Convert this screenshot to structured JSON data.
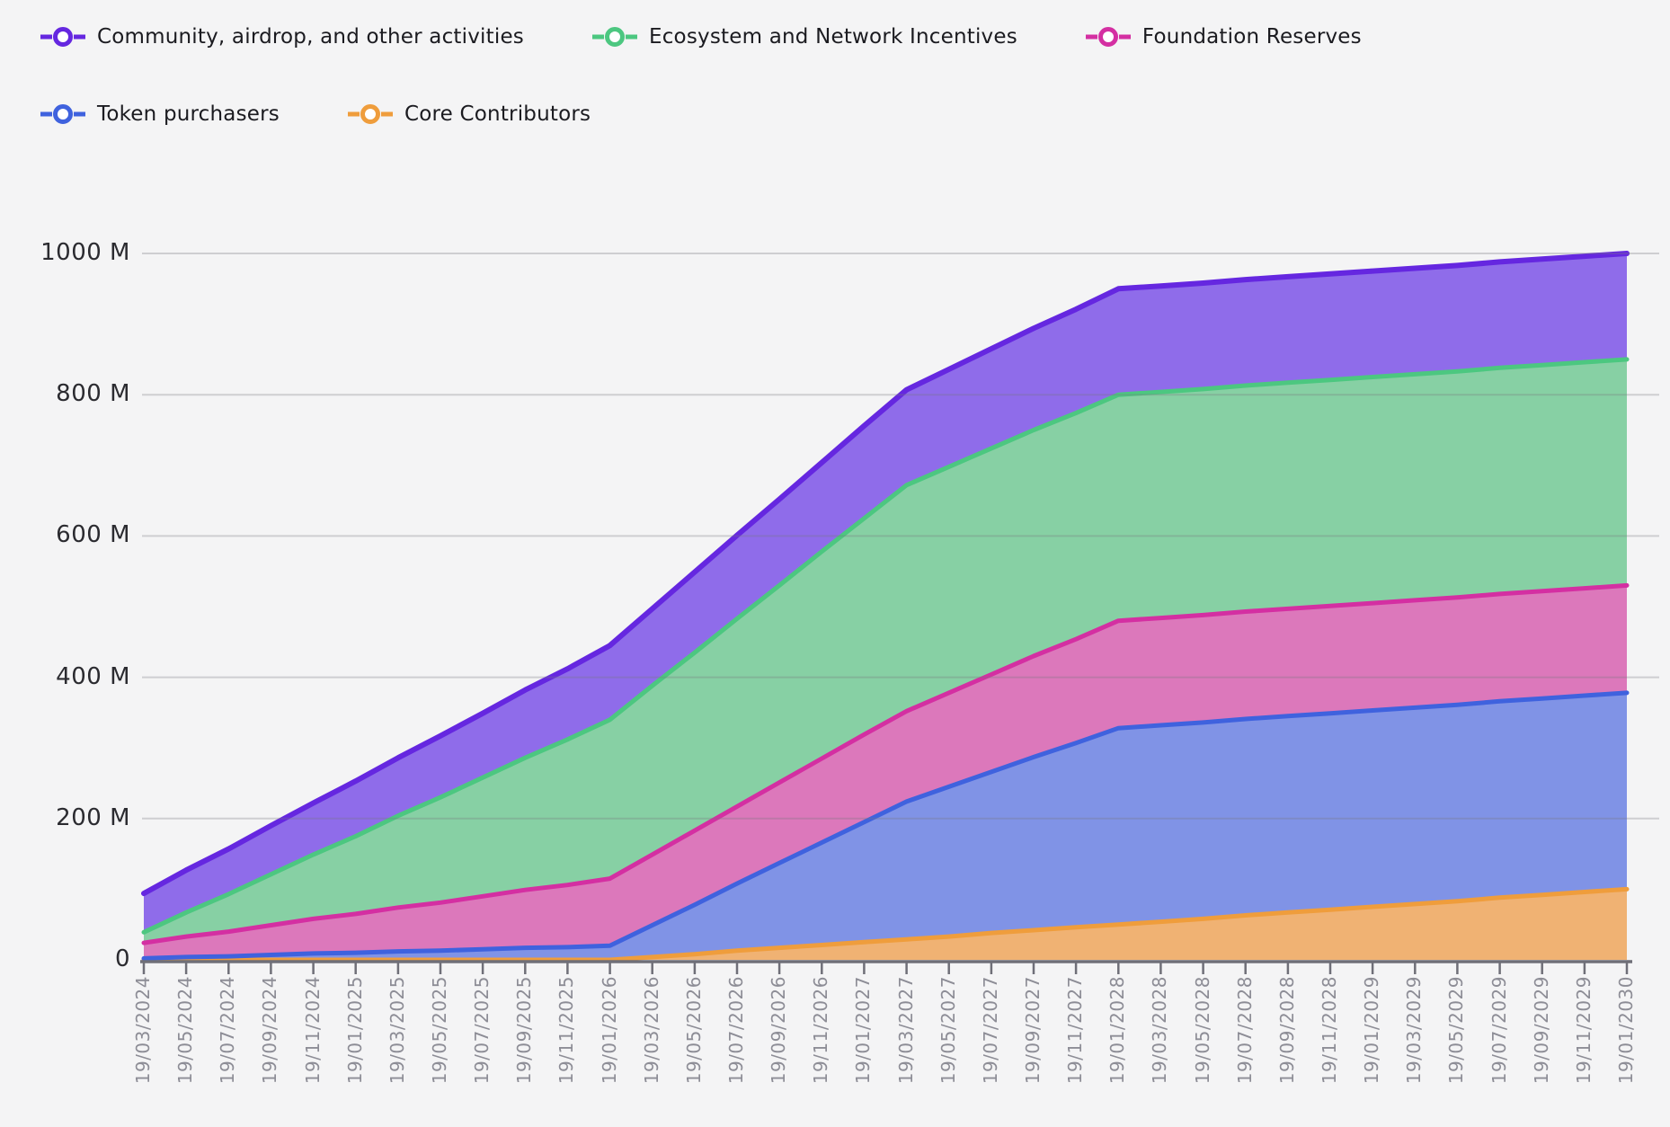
{
  "legend": [
    {
      "label": "Community, airdrop, and other activities",
      "stroke": "#6527e0",
      "fill": "#8f6cea"
    },
    {
      "label": "Ecosystem and Network Incentives",
      "stroke": "#4cc780",
      "fill": "#87d0a4"
    },
    {
      "label": "Foundation Reserves",
      "stroke": "#d42fa2",
      "fill": "#dc78bb"
    },
    {
      "label": "Token purchasers",
      "stroke": "#3f62de",
      "fill": "#8093e6"
    },
    {
      "label": "Core Contributors",
      "stroke": "#ef9d3c",
      "fill": "#f0b273"
    }
  ],
  "colors": {
    "background": "#f4f4f5",
    "gridline": "#76767e",
    "axis_line": "#6f6f78",
    "x_tick_text": "#8d8d96",
    "y_tick_text": "#2b2b30",
    "legend_text": "#1b1b20"
  },
  "chart_data": {
    "type": "area",
    "stacked": true,
    "title": "",
    "xlabel": "",
    "ylabel": "",
    "ylim": [
      0,
      1000
    ],
    "grid": true,
    "legend_position": "top",
    "y_tick_values": [
      0,
      200,
      400,
      600,
      800,
      1000
    ],
    "y_tick_labels": [
      "0",
      "200 M",
      "400 M",
      "600 M",
      "800 M",
      "1000 M"
    ],
    "x": [
      "19/03/2024",
      "19/05/2024",
      "19/07/2024",
      "19/09/2024",
      "19/11/2024",
      "19/01/2025",
      "19/03/2025",
      "19/05/2025",
      "19/07/2025",
      "19/09/2025",
      "19/11/2025",
      "19/01/2026",
      "19/03/2026",
      "19/05/2026",
      "19/07/2026",
      "19/09/2026",
      "19/11/2026",
      "19/01/2027",
      "19/03/2027",
      "19/05/2027",
      "19/07/2027",
      "19/09/2027",
      "19/11/2027",
      "19/01/2028",
      "19/03/2028",
      "19/05/2028",
      "19/07/2028",
      "19/09/2028",
      "19/11/2028",
      "19/01/2029",
      "19/03/2029",
      "19/05/2029",
      "19/07/2029",
      "19/09/2029",
      "19/11/2029",
      "19/01/2030"
    ],
    "series": [
      {
        "name": "Core Contributors",
        "stack_order": "bottom",
        "values": [
          0,
          0,
          0,
          0,
          0,
          0,
          0,
          0,
          0,
          0,
          0,
          0,
          4,
          8,
          13,
          17,
          21,
          25,
          29,
          33,
          38,
          42,
          46,
          50,
          54,
          58,
          63,
          67,
          71,
          75,
          79,
          83,
          88,
          92,
          96,
          100
        ]
      },
      {
        "name": "Token purchasers",
        "values": [
          2,
          4,
          5,
          7,
          9,
          10,
          12,
          13,
          15,
          17,
          18,
          20,
          45,
          70,
          95,
          120,
          145,
          170,
          195,
          212,
          228,
          245,
          261,
          278,
          278,
          278,
          278,
          278,
          278,
          278,
          278,
          278,
          278,
          278,
          278,
          278
        ]
      },
      {
        "name": "Foundation Reserves",
        "values": [
          22,
          29,
          35,
          42,
          49,
          55,
          62,
          68,
          75,
          82,
          88,
          95,
          100,
          105,
          109,
          114,
          119,
          124,
          128,
          133,
          138,
          143,
          147,
          152,
          152,
          152,
          152,
          152,
          152,
          152,
          152,
          152,
          152,
          152,
          152,
          152
        ]
      },
      {
        "name": "Ecosystem and Network Incentives",
        "values": [
          15,
          34,
          53,
          72,
          91,
          110,
          130,
          149,
          168,
          187,
          206,
          225,
          239,
          252,
          266,
          279,
          293,
          306,
          320,
          320,
          320,
          320,
          320,
          320,
          320,
          320,
          320,
          320,
          320,
          320,
          320,
          320,
          320,
          320,
          320,
          320
        ]
      },
      {
        "name": "Community, airdrop, and other activities",
        "stack_order": "top",
        "values": [
          55,
          60,
          64,
          69,
          73,
          78,
          82,
          87,
          91,
          96,
          100,
          105,
          109,
          114,
          118,
          122,
          126,
          131,
          135,
          138,
          141,
          144,
          147,
          150,
          150,
          150,
          150,
          150,
          150,
          150,
          150,
          150,
          150,
          150,
          150,
          150
        ]
      }
    ]
  }
}
